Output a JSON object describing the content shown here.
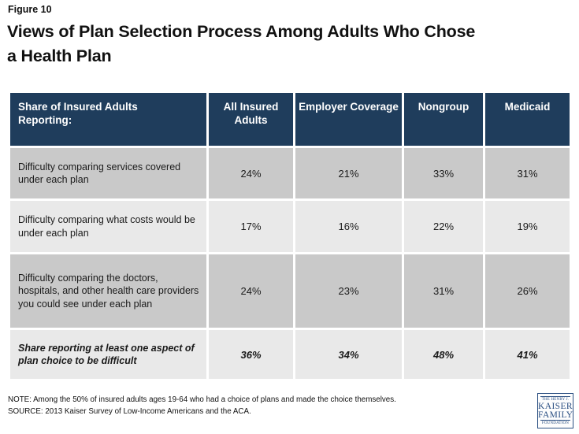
{
  "figure_label": "Figure 10",
  "title_line1": "Views of Plan Selection Process Among Adults Who Chose",
  "title_line2": "a Health Plan",
  "table": {
    "header": [
      "Share of Insured Adults Reporting:",
      "All Insured Adults",
      "Employer Coverage",
      "Nongroup",
      "Medicaid"
    ],
    "rows": [
      {
        "label": "Difficulty comparing services covered under each plan",
        "values": [
          "24%",
          "21%",
          "33%",
          "31%"
        ],
        "emphasis": false
      },
      {
        "label": "Difficulty comparing what costs would be under each plan",
        "values": [
          "17%",
          "16%",
          "22%",
          "19%"
        ],
        "emphasis": false
      },
      {
        "label": "Difficulty comparing the doctors, hospitals, and other health care providers you could see under each plan",
        "values": [
          "24%",
          "23%",
          "31%",
          "26%"
        ],
        "emphasis": false
      },
      {
        "label": "Share reporting at least one aspect of plan choice to be difficult",
        "values": [
          "36%",
          "34%",
          "48%",
          "41%"
        ],
        "emphasis": true
      }
    ]
  },
  "chart_data": {
    "type": "table",
    "title": "Views of Plan Selection Process Among Adults Who Chose a Health Plan",
    "figure": "Figure 10",
    "row_header": "Share of Insured Adults Reporting:",
    "columns": [
      "All Insured Adults",
      "Employer Coverage",
      "Nongroup",
      "Medicaid"
    ],
    "rows": [
      {
        "label": "Difficulty comparing services covered under each plan",
        "values_pct": [
          24,
          21,
          33,
          31
        ]
      },
      {
        "label": "Difficulty comparing what costs would be under each plan",
        "values_pct": [
          17,
          16,
          22,
          19
        ]
      },
      {
        "label": "Difficulty comparing the doctors, hospitals, and other health care providers you could see under each plan",
        "values_pct": [
          24,
          23,
          31,
          26
        ]
      },
      {
        "label": "Share reporting at least one aspect of plan choice to be difficult",
        "values_pct": [
          36,
          34,
          48,
          41
        ],
        "emphasis": true
      }
    ],
    "units": "%"
  },
  "footer": {
    "note": "NOTE: Among the 50% of insured adults ages 19-64 who had a choice of plans and made the choice themselves.",
    "source": "SOURCE: 2013 Kaiser Survey of Low-Income Americans and the ACA."
  },
  "logo": {
    "line1": "THE HENRY J.",
    "line2": "KAISER",
    "line3": "FAMILY",
    "line4": "FOUNDATION"
  },
  "colors": {
    "header_bg": "#1F3D5C",
    "row_dark": "#C9C9C9",
    "row_light": "#E9E9E9",
    "logo_navy": "#2C5083",
    "text": "#1A1A1A"
  }
}
